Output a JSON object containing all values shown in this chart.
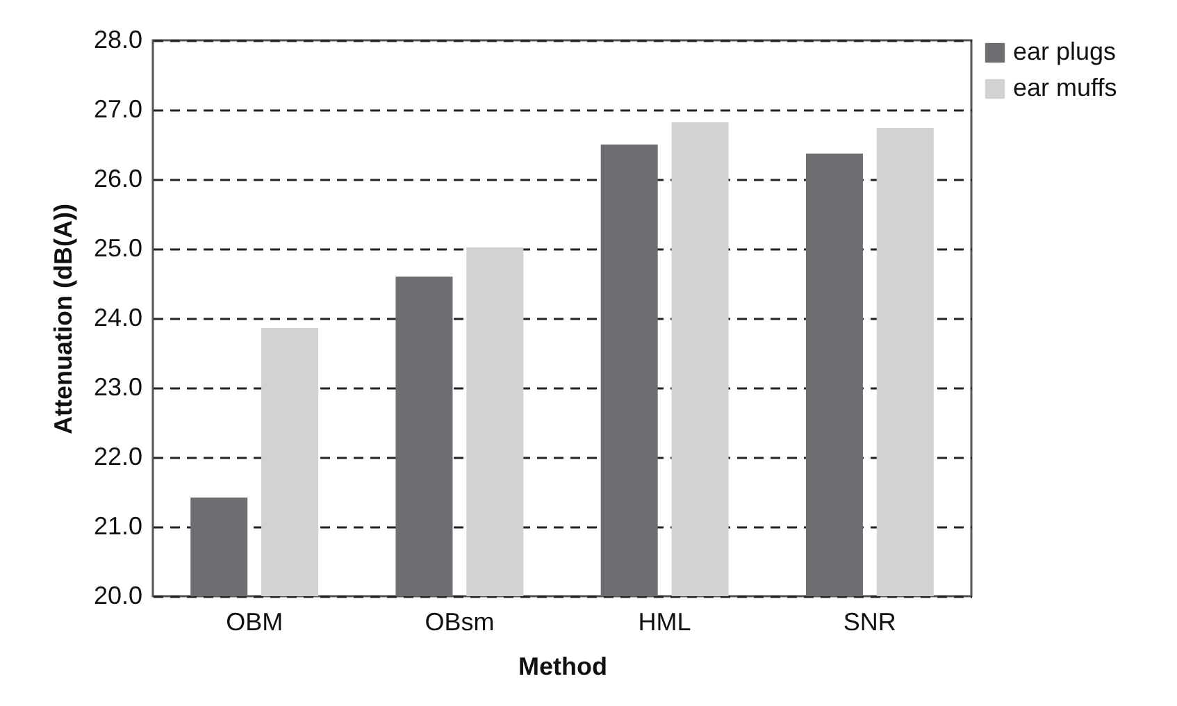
{
  "chart_data": {
    "type": "bar",
    "xlabel": "Method",
    "ylabel": "Attenuation (dB(A))",
    "categories": [
      "OBM",
      "OBsm",
      "HML",
      "SNR"
    ],
    "series": [
      {
        "name": "ear plugs",
        "color": "#6d6e71",
        "values": [
          21.42,
          24.6,
          26.5,
          26.37
        ]
      },
      {
        "name": "ear muffs",
        "color": "#d1d2d4",
        "values": [
          23.86,
          25.02,
          26.82,
          26.74
        ]
      }
    ],
    "ylim": [
      20,
      28
    ],
    "yticks": [
      {
        "value": 20,
        "label": "20.0"
      },
      {
        "value": 21,
        "label": "21.0"
      },
      {
        "value": 22,
        "label": "22.0"
      },
      {
        "value": 23,
        "label": "23.0"
      },
      {
        "value": 24,
        "label": "24.0"
      },
      {
        "value": 25,
        "label": "25.0"
      },
      {
        "value": 26,
        "label": "26.0"
      },
      {
        "value": 27,
        "label": "27.0"
      },
      {
        "value": 28,
        "label": "28.0"
      }
    ],
    "grid": "y",
    "legend": "right"
  }
}
